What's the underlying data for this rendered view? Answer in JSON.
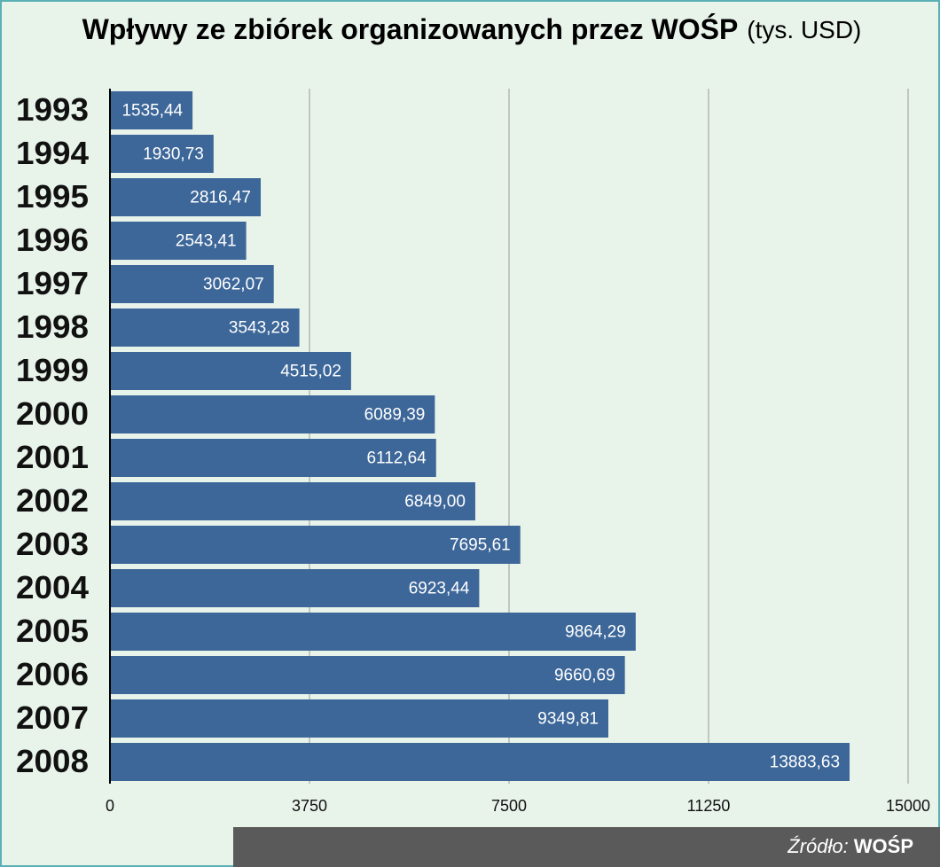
{
  "chart_data": {
    "type": "bar",
    "orientation": "horizontal",
    "title": "Wpływy ze zbiórek organizowanych przez WOŚP",
    "title_unit": "(tys. USD)",
    "categories": [
      "1993",
      "1994",
      "1995",
      "1996",
      "1997",
      "1998",
      "1999",
      "2000",
      "2001",
      "2002",
      "2003",
      "2004",
      "2005",
      "2006",
      "2007",
      "2008"
    ],
    "values": [
      1535.44,
      1930.73,
      2816.47,
      2543.41,
      3062.07,
      3543.28,
      4515.02,
      6089.39,
      6112.64,
      6849.0,
      7695.61,
      6923.44,
      9864.29,
      9660.69,
      9349.81,
      13883.63
    ],
    "value_labels": [
      "1535,44",
      "1930,73",
      "2816,47",
      "2543,41",
      "3062,07",
      "3543,28",
      "4515,02",
      "6089,39",
      "6112,64",
      "6849,00",
      "7695,61",
      "6923,44",
      "9864,29",
      "9660,69",
      "9349,81",
      "13883,63"
    ],
    "color": "#3d6799",
    "xlim": [
      0,
      15000
    ],
    "xticks": [
      0,
      3750,
      7500,
      11250,
      15000
    ],
    "grid": true,
    "source_label": "Źródło:",
    "source": "WOŚP"
  }
}
